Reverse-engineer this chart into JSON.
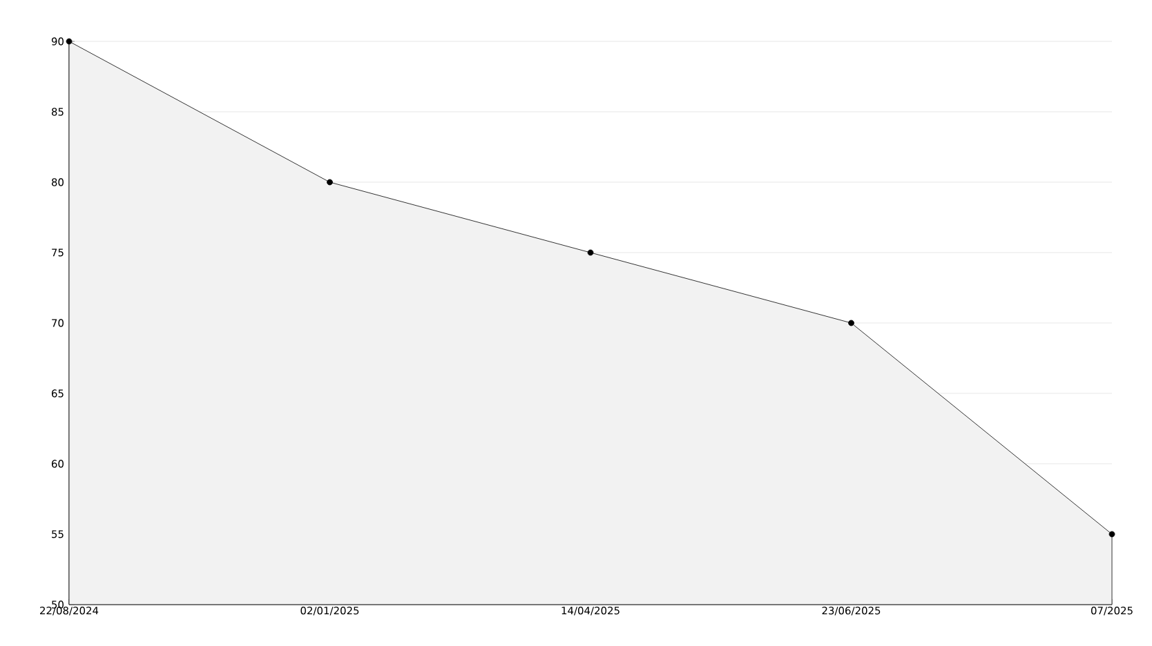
{
  "chart_data": {
    "type": "area",
    "categories": [
      "22/08/2024",
      "02/01/2025",
      "14/04/2025",
      "23/06/2025",
      "07/2025"
    ],
    "values": [
      90,
      80,
      75,
      70,
      55
    ],
    "color": "#f2f2f2",
    "ylim": [
      50,
      90
    ],
    "yticks": [
      50,
      55,
      60,
      65,
      70,
      75,
      80,
      85,
      90
    ],
    "grid": "y",
    "marker": "circle",
    "line_style": "solid"
  }
}
